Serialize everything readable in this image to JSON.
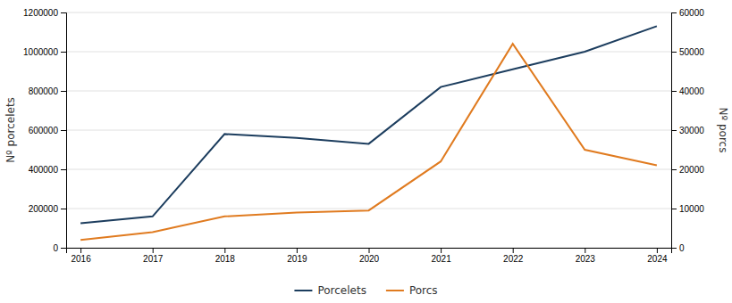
{
  "chart_data": {
    "type": "line",
    "x": [
      2016,
      2017,
      2018,
      2019,
      2020,
      2021,
      2022,
      2023,
      2024
    ],
    "series": [
      {
        "name": "Porcelets",
        "color": "#1c3d5e",
        "values": [
          125000,
          160000,
          580000,
          560000,
          530000,
          820000,
          910000,
          1000000,
          1130000
        ]
      },
      {
        "name": "Porcs",
        "color": "#e07b20",
        "axis": "y2",
        "values": [
          2000,
          4000,
          8000,
          9000,
          9500,
          22000,
          52000,
          25000,
          21000
        ]
      }
    ],
    "ylabel": "Nº porcelets",
    "y2label": "Nº porcs",
    "xlim": [
      2015.8,
      2024.2
    ],
    "xticks": [
      2016,
      2017,
      2018,
      2019,
      2020,
      2021,
      2022,
      2023,
      2024
    ],
    "ylim": [
      0,
      1200000
    ],
    "yticks": [
      0,
      200000,
      400000,
      600000,
      800000,
      1000000,
      1200000
    ],
    "y2lim": [
      0,
      60000
    ],
    "y2ticks": [
      0,
      10000,
      20000,
      30000,
      40000,
      50000,
      60000
    ],
    "grid": true,
    "legend": "bottom"
  }
}
